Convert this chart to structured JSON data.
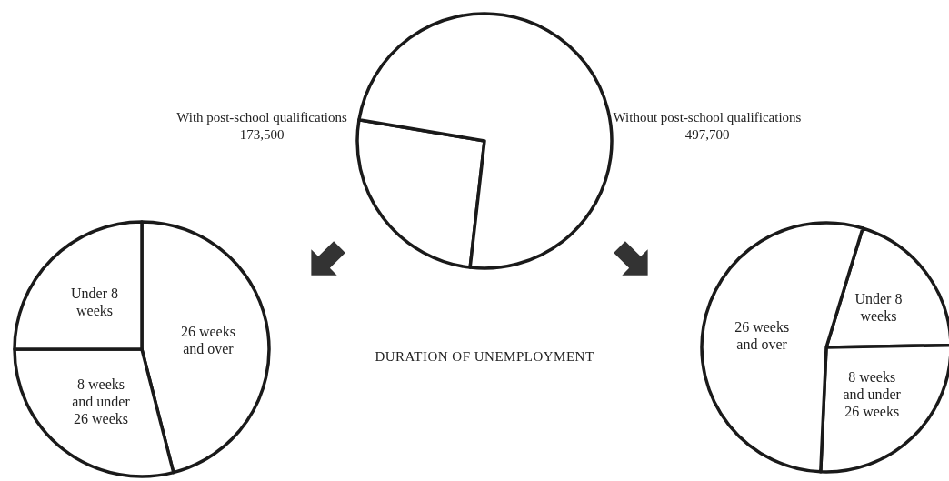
{
  "chart_data": [
    {
      "type": "pie",
      "categories": [
        "With post-school qualifications",
        "Without post-school qualifications"
      ],
      "values": [
        173500,
        497700
      ],
      "value_labels": [
        "173,500",
        "497,700"
      ],
      "colors": [
        "#ffffff",
        "#ffffff"
      ],
      "annotations": [
        "DURATION OF UNEMPLOYMENT"
      ]
    },
    {
      "type": "pie",
      "categories": [
        "26 weeks and over",
        "8 weeks and under 26 weeks",
        "Under 8 weeks"
      ],
      "values": [
        46,
        29,
        25
      ],
      "colors": [
        "#ffffff",
        "#ffffff",
        "#ffffff"
      ]
    },
    {
      "type": "pie",
      "categories": [
        "Under 8 weeks",
        "8 weeks and under 26 weeks",
        "26 weeks and over"
      ],
      "values": [
        20,
        26,
        54
      ],
      "colors": [
        "#ffffff",
        "#ffffff",
        "#ffffff"
      ]
    }
  ]
}
